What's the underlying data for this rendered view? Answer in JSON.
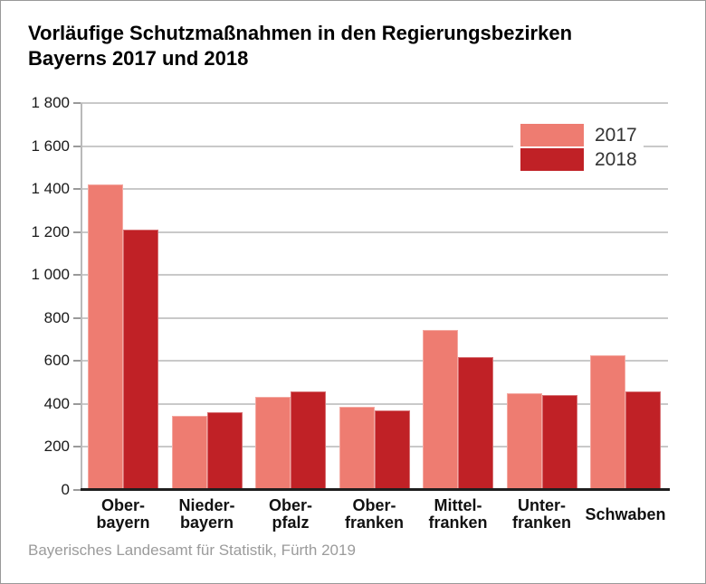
{
  "frame": {
    "background": "#ffffff",
    "border_color": "#999999"
  },
  "title": "Vorläufige Schutzmaßnahmen in den Regierungsbezirken\nBayerns 2017 und 2018",
  "source": "Bayerisches Landesamt für Statistik, Fürth 2019",
  "legend": {
    "items": [
      {
        "label": "2017",
        "color": "#ee7c71"
      },
      {
        "label": "2018",
        "color": "#c02126"
      }
    ]
  },
  "colors": {
    "series_2017": "#ee7c71",
    "series_2018": "#c02126",
    "gridline": "#c9c9c9",
    "axis_line": "#b9b9b9",
    "baseline": "#1f1f1f",
    "tick_label": "#1a1a1a",
    "source_text": "#9b9b9b"
  },
  "chart_data": {
    "type": "bar",
    "title": "Vorläufige Schutzmaßnahmen in den Regierungsbezirken Bayerns 2017 und 2018",
    "categories": [
      "Oberbayern",
      "Niederbayern",
      "Oberpfalz",
      "Oberfranken",
      "Mittelfranken",
      "Unterfranken",
      "Schwaben"
    ],
    "category_labels": [
      [
        "Ober-",
        "bayern"
      ],
      [
        "Nieder-",
        "bayern"
      ],
      [
        "Ober-",
        "pfalz"
      ],
      [
        "Ober-",
        "franken"
      ],
      [
        "Mittel-",
        "franken"
      ],
      [
        "Unter-",
        "franken"
      ],
      [
        "Schwaben"
      ]
    ],
    "series": [
      {
        "name": "2017",
        "color": "#ee7c71",
        "values": [
          1420,
          345,
          435,
          385,
          745,
          450,
          625
        ]
      },
      {
        "name": "2018",
        "color": "#c02126",
        "values": [
          1210,
          360,
          460,
          370,
          620,
          440,
          460
        ]
      }
    ],
    "xlabel": "",
    "ylabel": "",
    "ylim": [
      0,
      1800
    ],
    "yticks": [
      0,
      200,
      400,
      600,
      800,
      1000,
      1200,
      1400,
      1600,
      1800
    ],
    "ytick_labels": [
      "0",
      "200",
      "400",
      "600",
      "800",
      "1 000",
      "1 200",
      "1 400",
      "1 600",
      "1 800"
    ],
    "grid": "horizontal",
    "legend_position": "top-right",
    "source": "Bayerisches Landesamt für Statistik, Fürth 2019"
  }
}
